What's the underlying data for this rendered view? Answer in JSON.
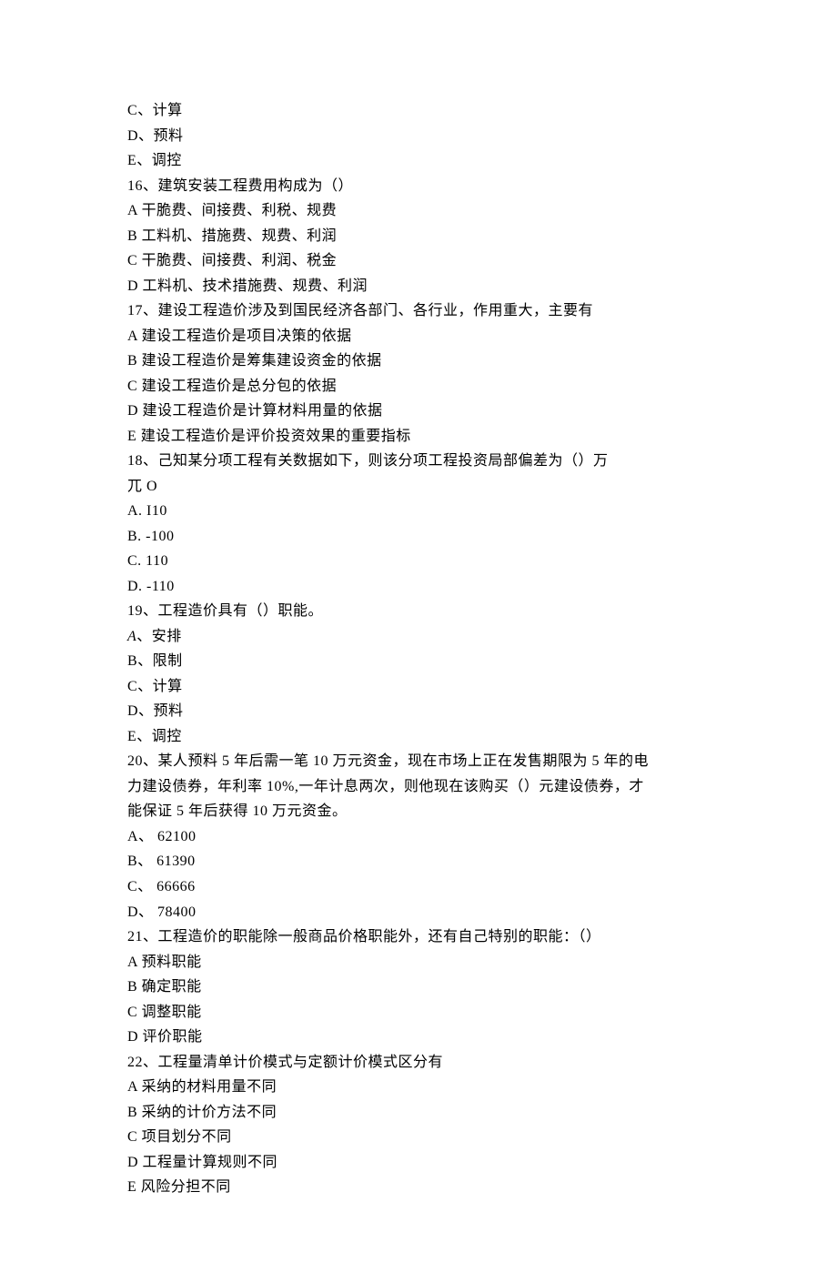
{
  "lines": [
    {
      "text": "C、计算"
    },
    {
      "text": "D、预料"
    },
    {
      "text": "E、调控"
    },
    {
      "text": "16、建筑安装工程费用构成为（）"
    },
    {
      "text": "A 干脆费、间接费、利税、规费"
    },
    {
      "text": "B 工料机、措施费、规费、利润"
    },
    {
      "text": "C 干脆费、间接费、利润、税金"
    },
    {
      "text": "D 工料机、技术措施费、规费、利润"
    },
    {
      "text": "17、建设工程造价涉及到国民经济各部门、各行业，作用重大，主要有"
    },
    {
      "text": "A 建设工程造价是项目决策的依据"
    },
    {
      "text": "B 建设工程造价是筹集建设资金的依据"
    },
    {
      "text": "C 建设工程造价是总分包的依据"
    },
    {
      "text": "D 建设工程造价是计算材料用量的依据"
    },
    {
      "text": "E 建设工程造价是评价投资效果的重要指标"
    },
    {
      "text": "18、己知某分项工程有关数据如下，则该分项工程投资局部偏差为（）万"
    },
    {
      "text": "兀 O"
    },
    {
      "text": "A. I10"
    },
    {
      "text": "B. -100"
    },
    {
      "text": "C. 110"
    },
    {
      "text": "D. -110"
    },
    {
      "text": "19、工程造价具有（）职能。"
    },
    {
      "prefix_italic": "A",
      "text": "、安排"
    },
    {
      "text": "B、限制"
    },
    {
      "text": "C、计算"
    },
    {
      "text": "D、预料"
    },
    {
      "text": "E、调控"
    },
    {
      "text": "20、某人预料 5 年后需一笔 10 万元资金，现在市场上正在发售期限为 5 年的电"
    },
    {
      "text": "力建设债券，年利率 10%,一年计息两次，则他现在该购买（）元建设债券，才"
    },
    {
      "text": "能保证 5 年后获得 10 万元资金。"
    },
    {
      "text": "A、 62100"
    },
    {
      "text": "B、 61390"
    },
    {
      "text": "C、 66666"
    },
    {
      "text": "D、 78400"
    },
    {
      "text": "21、工程造价的职能除一般商品价格职能外，还有自己特别的职能：（）"
    },
    {
      "text": "A 预料职能"
    },
    {
      "text": "B 确定职能"
    },
    {
      "text": "C 调整职能"
    },
    {
      "text": "D 评价职能"
    },
    {
      "text": "22、工程量清单计价模式与定额计价模式区分有"
    },
    {
      "text": "A 采纳的材料用量不同"
    },
    {
      "text": "B 采纳的计价方法不同"
    },
    {
      "text": "C 项目划分不同"
    },
    {
      "text": "D 工程量计算规则不同"
    },
    {
      "text": "E 风险分担不同"
    }
  ]
}
